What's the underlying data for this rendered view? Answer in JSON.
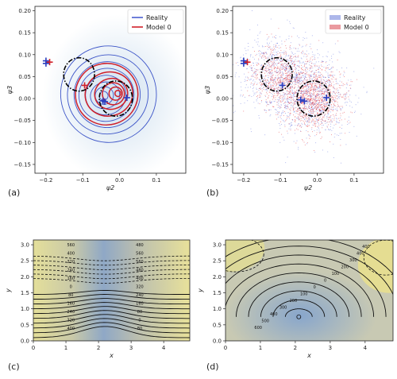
{
  "chart_data": [
    {
      "id": "a",
      "panel_label": "(a)",
      "type": "contour",
      "xlabel": "ψ2",
      "ylabel": "ψ3",
      "xlim": [
        -0.23,
        0.18
      ],
      "ylim": [
        -0.17,
        0.21
      ],
      "xticks": [
        -0.2,
        -0.1,
        0.0,
        0.1
      ],
      "xtick_labels": [
        "−0.2",
        "−0.1",
        "0.0",
        "0.1"
      ],
      "yticks": [
        -0.15,
        -0.1,
        -0.05,
        0.0,
        0.05,
        0.1,
        0.15,
        0.2
      ],
      "ytick_labels": [
        "−0.15",
        "−0.10",
        "−0.05",
        "0.00",
        "0.05",
        "0.10",
        "0.15",
        "0.20"
      ],
      "legend": [
        {
          "label": "Reality",
          "color": "#4a5fd0"
        },
        {
          "label": "Model 0",
          "color": "#d0202a"
        }
      ],
      "legend_position": "top-right",
      "ellipses": [
        {
          "cx": -0.11,
          "cy": 0.055,
          "rx": 0.042,
          "ry": 0.038
        },
        {
          "cx": -0.01,
          "cy": 0.0,
          "rx": 0.045,
          "ry": 0.04
        }
      ],
      "markers": [
        {
          "x": -0.2,
          "y": 0.086,
          "color": "#2a3fc0"
        },
        {
          "x": -0.19,
          "y": 0.083,
          "color": "#d0202a"
        },
        {
          "x": -0.2,
          "y": 0.08,
          "color": "#2a3fc0"
        },
        {
          "x": -0.095,
          "y": 0.03,
          "color": "#d0202a"
        },
        {
          "x": -0.045,
          "y": -0.005,
          "color": "#2a3fc0"
        },
        {
          "x": -0.04,
          "y": -0.007,
          "color": "#2a3fc0"
        },
        {
          "x": 0.02,
          "y": 0.002,
          "color": "#2a3fc0"
        }
      ]
    },
    {
      "id": "b",
      "panel_label": "(b)",
      "type": "scatter",
      "xlabel": "ψ2",
      "ylabel": "ψ3",
      "xlim": [
        -0.23,
        0.18
      ],
      "ylim": [
        -0.17,
        0.21
      ],
      "xticks": [
        -0.2,
        -0.1,
        0.0,
        0.1
      ],
      "xtick_labels": [
        "−0.2",
        "−0.1",
        "0.0",
        "0.1"
      ],
      "yticks": [
        -0.15,
        -0.1,
        -0.05,
        0.0,
        0.05,
        0.1,
        0.15,
        0.2
      ],
      "ytick_labels": [
        "−0.15",
        "−0.10",
        "−0.05",
        "0.00",
        "0.05",
        "0.10",
        "0.15",
        "0.20"
      ],
      "legend": [
        {
          "label": "Reality",
          "color": "#4a5fd0"
        },
        {
          "label": "Model 0",
          "color": "#d0202a"
        }
      ],
      "legend_position": "top-right",
      "ellipses": [
        {
          "cx": -0.11,
          "cy": 0.055,
          "rx": 0.042,
          "ry": 0.038
        },
        {
          "cx": -0.01,
          "cy": 0.0,
          "rx": 0.045,
          "ry": 0.04
        }
      ],
      "markers": [
        {
          "x": -0.2,
          "y": 0.086,
          "color": "#2a3fc0"
        },
        {
          "x": -0.19,
          "y": 0.083,
          "color": "#d0202a"
        },
        {
          "x": -0.2,
          "y": 0.08,
          "color": "#2a3fc0"
        },
        {
          "x": -0.095,
          "y": 0.03,
          "color": "#2a3fc0"
        },
        {
          "x": -0.045,
          "y": -0.003,
          "color": "#2a3fc0"
        },
        {
          "x": -0.035,
          "y": -0.006,
          "color": "#2a3fc0"
        },
        {
          "x": 0.025,
          "y": 0.002,
          "color": "#2a3fc0"
        }
      ]
    },
    {
      "id": "c",
      "panel_label": "(c)",
      "type": "contour",
      "xlabel": "x",
      "ylabel": "y",
      "xlim": [
        0,
        4.8
      ],
      "ylim": [
        0,
        3.15
      ],
      "xticks": [
        0,
        1,
        2,
        3,
        4
      ],
      "xtick_labels": [
        "0",
        "1",
        "2",
        "3",
        "4"
      ],
      "yticks": [
        0.0,
        0.5,
        1.0,
        1.5,
        2.0,
        2.5,
        3.0
      ],
      "ytick_labels": [
        "0.0",
        "0.5",
        "1.0",
        "1.5",
        "2.0",
        "2.5",
        "3.0"
      ],
      "contour_labels": [
        "560",
        "400",
        "320",
        "240",
        "160",
        "0",
        "80",
        "160",
        "240",
        "320",
        "400",
        "480",
        "560",
        "560",
        "480",
        "400",
        "320",
        "240",
        "160",
        "80",
        "0",
        "80"
      ]
    },
    {
      "id": "d",
      "panel_label": "(d)",
      "type": "contour",
      "xlabel": "x",
      "ylabel": "y",
      "xlim": [
        0,
        4.8
      ],
      "ylim": [
        0,
        3.15
      ],
      "xticks": [
        0,
        1,
        2,
        3,
        4
      ],
      "xtick_labels": [
        "0",
        "1",
        "2",
        "3",
        "4"
      ],
      "yticks": [
        0.0,
        0.5,
        1.0,
        1.5,
        2.0,
        2.5,
        3.0
      ],
      "ytick_labels": [
        "0.0",
        "0.5",
        "1.0",
        "1.5",
        "2.0",
        "2.5",
        "3.0"
      ],
      "contour_labels": [
        "400",
        "400",
        "300",
        "200",
        "100",
        "0",
        "0",
        "100",
        "200",
        "300",
        "400",
        "500",
        "600"
      ]
    }
  ]
}
